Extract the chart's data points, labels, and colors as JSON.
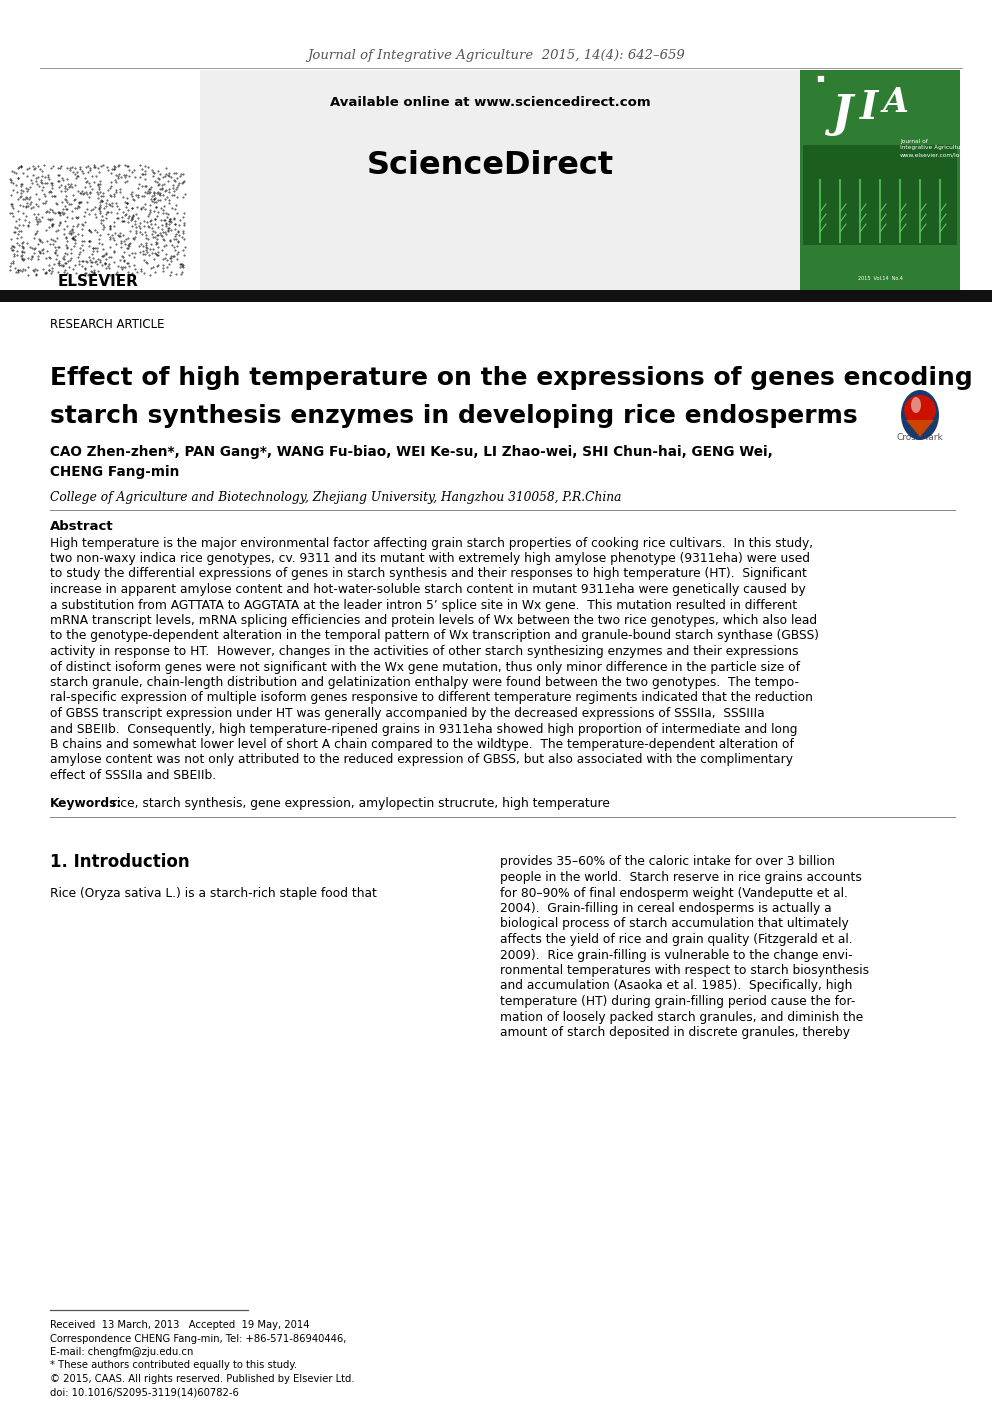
{
  "journal_line": "Journal of Integrative Agriculture  2015, 14(4): 642–659",
  "available_online": "Available online at www.sciencedirect.com",
  "sciencedirect_title": "ScienceDirect",
  "elsevier_text": "ELSEVIER",
  "research_article": "RESEARCH ARTICLE",
  "paper_title_line1": "Effect of high temperature on the expressions of genes encoding",
  "paper_title_line2": "starch synthesis enzymes in developing rice endosperms",
  "authors_line1": "CAO Zhen-zhen*, PAN Gang*, WANG Fu-biao, WEI Ke-su, LI Zhao-wei, SHI Chun-hai, GENG Wei,",
  "authors_line2": "CHENG Fang-min",
  "affiliation": "College of Agriculture and Biotechnology, Zhejiang University, Hangzhou 310058, P.R.China",
  "abstract_title": "Abstract",
  "abstract_lines": [
    "High temperature is the major environmental factor affecting grain starch properties of cooking rice cultivars.  In this study,",
    "two non-waxy indica rice genotypes, cv. 9311 and its mutant with extremely high amylose phenotype (9311eha) were used",
    "to study the differential expressions of genes in starch synthesis and their responses to high temperature (HT).  Significant",
    "increase in apparent amylose content and hot-water-soluble starch content in mutant 9311eha were genetically caused by",
    "a substitution from AGTTATA to AGGTATA at the leader intron 5’ splice site in Wx gene.  This mutation resulted in different",
    "mRNA transcript levels, mRNA splicing efficiencies and protein levels of Wx between the two rice genotypes, which also lead",
    "to the genotype-dependent alteration in the temporal pattern of Wx transcription and granule-bound starch synthase (GBSS)",
    "activity in response to HT.  However, changes in the activities of other starch synthesizing enzymes and their expressions",
    "of distinct isoform genes were not significant with the Wx gene mutation, thus only minor difference in the particle size of",
    "starch granule, chain-length distribution and gelatinization enthalpy were found between the two genotypes.  The tempo-",
    "ral-specific expression of multiple isoform genes responsive to different temperature regiments indicated that the reduction",
    "of GBSS transcript expression under HT was generally accompanied by the decreased expressions of SSSIIa,  SSSIIIa",
    "and SBEIIb.  Consequently, high temperature-ripened grains in 9311eha showed high proportion of intermediate and long",
    "B chains and somewhat lower level of short A chain compared to the wildtype.  The temperature-dependent alteration of",
    "amylose content was not only attributed to the reduced expression of GBSS, but also associated with the complimentary",
    "effect of SSSIIa and SBEIIb."
  ],
  "keywords_label": "Keywords:",
  "keywords_text": " rice, starch synthesis, gene expression, amylopectin strucrute, high temperature",
  "intro_heading": "1. Introduction",
  "intro_left_line1": "Rice (Oryza sativa L.) is a starch-rich staple food that",
  "intro_right_lines": [
    "provides 35–60% of the caloric intake for over 3 billion",
    "people in the world.  Starch reserve in rice grains accounts",
    "for 80–90% of final endosperm weight (Vandeputte et al.",
    "2004).  Grain-filling in cereal endosperms is actually a",
    "biological process of starch accumulation that ultimately",
    "affects the yield of rice and grain quality (Fitzgerald et al.",
    "2009).  Rice grain-filling is vulnerable to the change envi-",
    "ronmental temperatures with respect to starch biosynthesis",
    "and accumulation (Asaoka et al. 1985).  Specifically, high",
    "temperature (HT) during grain-filling period cause the for-",
    "mation of loosely packed starch granules, and diminish the",
    "amount of starch deposited in discrete granules, thereby"
  ],
  "fn_received": "Received  13 March, 2013   Accepted  19 May, 2014",
  "fn_correspondence": "Correspondence CHENG Fang-min, Tel: +86-571-86940446,",
  "fn_email": "E-mail: chengfm@zju.edu.cn",
  "fn_footnote": "* These authors contributed equally to this study.",
  "fn_copyright": "© 2015, CAAS. All rights reserved. Published by Elsevier Ltd.",
  "fn_doi": "doi: 10.1016/S2095-3119(14)60782-6",
  "bg_color": "#ffffff",
  "text_color": "#000000",
  "gray_text": "#555555",
  "thin_line": "#aaaaaa",
  "thick_bar": "#111111",
  "header_gray": "#efefef",
  "jia_green": "#2e7d32"
}
